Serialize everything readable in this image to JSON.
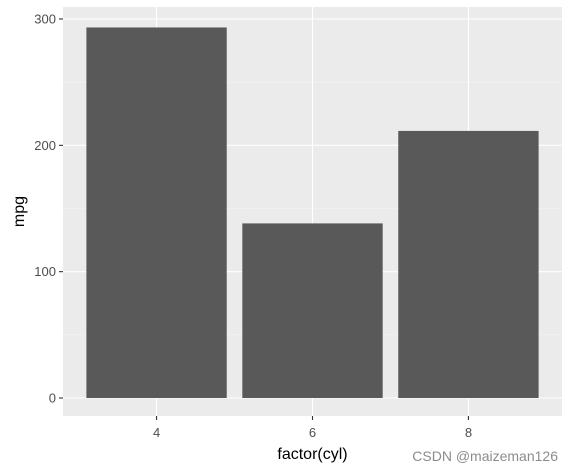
{
  "chart_data": {
    "type": "bar",
    "categories": [
      "4",
      "6",
      "8"
    ],
    "values": [
      293.3,
      138.2,
      211.4
    ],
    "xlabel": "factor(cyl)",
    "ylabel": "mpg",
    "ylim": [
      0,
      310
    ],
    "yticks": [
      0,
      100,
      200,
      300
    ],
    "grid": true,
    "colors": {
      "bar": "#595959",
      "panel": "#ebebeb",
      "grid": "#ffffff"
    }
  },
  "watermark": "CSDN @maizeman126"
}
